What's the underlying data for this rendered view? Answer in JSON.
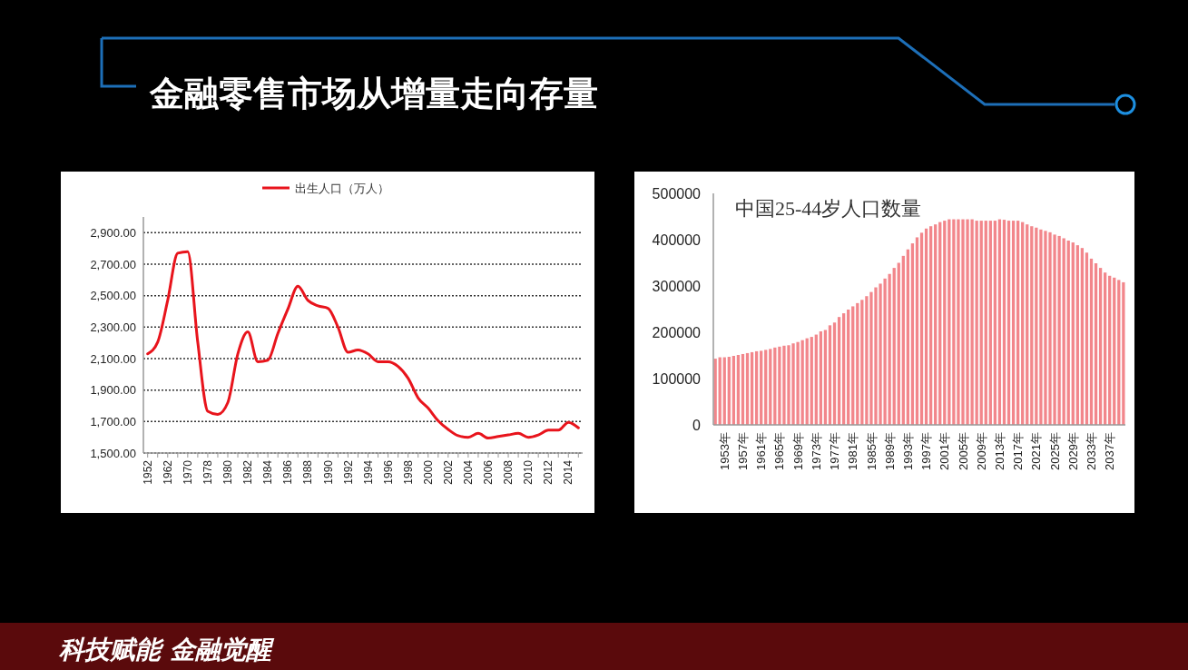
{
  "chart_data": [
    {
      "type": "line",
      "annotations": [
        "金融零售市场从增量走向存量",
        "科技赋能 金融觉醒"
      ],
      "categories": [
        "1952",
        null,
        "1962",
        null,
        "1970",
        null,
        "1978",
        null,
        "1980",
        null,
        "1982",
        null,
        "1984",
        null,
        "1986",
        null,
        "1988",
        null,
        "1990",
        null,
        "1992",
        null,
        "1994",
        null,
        "1996",
        null,
        "1998",
        null,
        "2000",
        null,
        "2002",
        null,
        "2004",
        null,
        "2006",
        null,
        "2008",
        null,
        "2010",
        null,
        "2012",
        null,
        "2014",
        null
      ],
      "series": [
        {
          "name": "出生人口（万人）",
          "color": "#e8141c",
          "values": [
            2130,
            2205,
            2470,
            2770,
            2780,
            2205,
            1765,
            1745,
            1820,
            2130,
            2270,
            2080,
            2090,
            2260,
            2415,
            2560,
            2470,
            2435,
            2420,
            2300,
            2140,
            2155,
            2130,
            2080,
            2080,
            2050,
            1975,
            1850,
            1785,
            1705,
            1650,
            1610,
            1600,
            1625,
            1595,
            1605,
            1615,
            1625,
            1600,
            1615,
            1645,
            1645,
            1695,
            1660
          ]
        }
      ],
      "ylim": [
        1500,
        3000
      ],
      "yticks": [
        {
          "value": 1500,
          "label": "1,500.00"
        },
        {
          "value": 1700,
          "label": "1,700.00"
        },
        {
          "value": 1900,
          "label": "1,900.00"
        },
        {
          "value": 2100,
          "label": "2,100.00"
        },
        {
          "value": 2300,
          "label": "2,300.00"
        },
        {
          "value": 2500,
          "label": "2,500.00"
        },
        {
          "value": 2700,
          "label": "2,700.00"
        },
        {
          "value": 2900,
          "label": "2,900.00"
        }
      ],
      "grid": "y",
      "legend": "top"
    },
    {
      "type": "bar",
      "title": "中国25-44岁人口数量",
      "categories": [
        null,
        null,
        "1953年",
        null,
        null,
        null,
        "1957年",
        null,
        null,
        null,
        "1961年",
        null,
        null,
        null,
        "1965年",
        null,
        null,
        null,
        "1969年",
        null,
        null,
        null,
        "1973年",
        null,
        null,
        null,
        "1977年",
        null,
        null,
        null,
        "1981年",
        null,
        null,
        null,
        "1985年",
        null,
        null,
        null,
        "1989年",
        null,
        null,
        null,
        "1993年",
        null,
        null,
        null,
        "1997年",
        null,
        null,
        null,
        "2001年",
        null,
        null,
        null,
        "2005年",
        null,
        null,
        null,
        "2009年",
        null,
        null,
        null,
        "2013年",
        null,
        null,
        null,
        "2017年",
        null,
        null,
        null,
        "2021年",
        null,
        null,
        null,
        "2025年",
        null,
        null,
        null,
        "2029年",
        null,
        null,
        null,
        "2033年",
        null,
        null,
        null,
        "2037年",
        null,
        null,
        null
      ],
      "color": "#f2868b",
      "values": [
        143000,
        146000,
        146000,
        147000,
        149000,
        151000,
        153000,
        155000,
        157000,
        159000,
        160000,
        162000,
        164000,
        167000,
        169000,
        171000,
        172000,
        176000,
        179000,
        183000,
        187000,
        190000,
        195000,
        202000,
        205000,
        215000,
        221000,
        233000,
        241000,
        249000,
        256000,
        263000,
        270000,
        278000,
        287000,
        297000,
        305000,
        316000,
        326000,
        339000,
        350000,
        365000,
        379000,
        392000,
        405000,
        415000,
        424000,
        429000,
        433000,
        438000,
        441000,
        444000,
        444000,
        444000,
        444000,
        444000,
        444000,
        441000,
        441000,
        441000,
        441000,
        441000,
        444000,
        443000,
        441000,
        441000,
        441000,
        438000,
        433000,
        429000,
        426000,
        422000,
        419000,
        416000,
        411000,
        408000,
        403000,
        398000,
        394000,
        388000,
        382000,
        372000,
        359000,
        349000,
        339000,
        329000,
        322000,
        318000,
        313000,
        308000
      ],
      "ylim": [
        0,
        500000
      ],
      "yticks": [
        0,
        100000,
        200000,
        300000,
        400000,
        500000
      ]
    }
  ]
}
